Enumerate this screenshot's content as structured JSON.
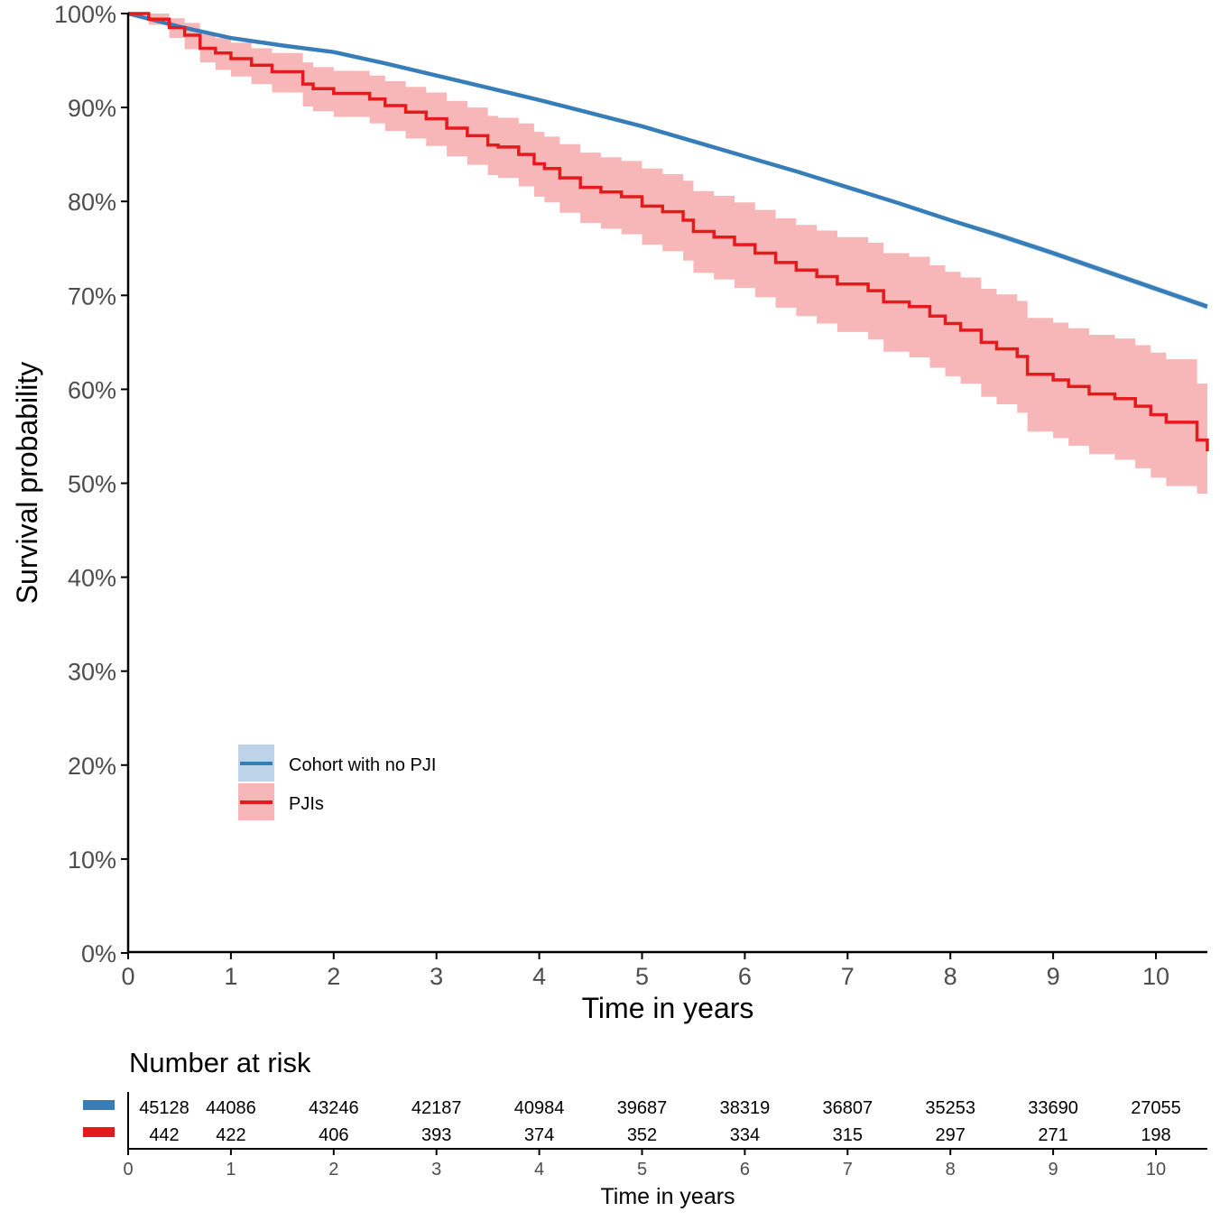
{
  "chart_data": {
    "type": "line",
    "subtype": "kaplan-meier",
    "title": "",
    "xlabel": "Time in years",
    "ylabel": "Survival probability",
    "xlim": [
      0,
      10.5
    ],
    "ylim": [
      0,
      100
    ],
    "x_ticks": [
      "0",
      "1",
      "2",
      "3",
      "4",
      "5",
      "6",
      "7",
      "8",
      "9",
      "10"
    ],
    "y_ticks": [
      "0%",
      "10%",
      "20%",
      "30%",
      "40%",
      "50%",
      "60%",
      "70%",
      "80%",
      "90%",
      "100%"
    ],
    "grid": false,
    "legend": {
      "placement": "bottom-left",
      "entries": [
        "Cohort with no PJI",
        "PJIs"
      ]
    },
    "series": [
      {
        "name": "Cohort with no PJI",
        "color": "#377eb8",
        "band_color": "#bdd3ea",
        "step": false,
        "x": [
          0,
          0.5,
          1,
          1.5,
          2,
          2.5,
          3,
          3.5,
          4,
          4.5,
          5,
          5.5,
          6,
          6.5,
          7,
          7.5,
          8,
          8.5,
          9,
          9.5,
          10,
          10.5
        ],
        "y": [
          100,
          98.6,
          97.4,
          96.6,
          95.9,
          94.7,
          93.4,
          92.1,
          90.8,
          89.4,
          88.0,
          86.4,
          84.8,
          83.2,
          81.5,
          79.8,
          78.0,
          76.3,
          74.5,
          72.6,
          70.7,
          68.8
        ],
        "ci_lower": [
          100,
          98.5,
          97.3,
          96.5,
          95.7,
          94.5,
          93.2,
          91.9,
          90.6,
          89.2,
          87.8,
          86.2,
          84.6,
          83.0,
          81.3,
          79.6,
          77.8,
          76.0,
          74.2,
          72.3,
          70.4,
          68.5
        ],
        "ci_upper": [
          100,
          98.7,
          97.5,
          96.7,
          96.1,
          94.9,
          93.6,
          92.3,
          91.0,
          89.6,
          88.2,
          86.6,
          85.0,
          83.4,
          81.7,
          80.0,
          78.2,
          76.6,
          74.8,
          72.9,
          71.0,
          69.1
        ]
      },
      {
        "name": "PJIs",
        "color": "#e41a1c",
        "band_color": "#f7b6b7",
        "step": true,
        "x": [
          0,
          0.2,
          0.4,
          0.55,
          0.7,
          0.85,
          1.0,
          1.2,
          1.4,
          1.7,
          1.8,
          2.0,
          2.35,
          2.5,
          2.7,
          2.9,
          3.1,
          3.3,
          3.5,
          3.6,
          3.8,
          3.95,
          4.05,
          4.2,
          4.4,
          4.6,
          4.8,
          5.0,
          5.2,
          5.4,
          5.5,
          5.7,
          5.9,
          6.1,
          6.3,
          6.5,
          6.7,
          6.9,
          7.2,
          7.35,
          7.6,
          7.8,
          7.95,
          8.1,
          8.3,
          8.45,
          8.65,
          8.75,
          9.0,
          9.15,
          9.35,
          9.6,
          9.8,
          9.95,
          10.1,
          10.4,
          10.5
        ],
        "y": [
          100,
          99.4,
          98.5,
          97.7,
          96.3,
          95.8,
          95.2,
          94.5,
          93.8,
          92.5,
          92.0,
          91.5,
          90.9,
          90.2,
          89.5,
          88.8,
          87.8,
          87.0,
          86.0,
          85.8,
          85.0,
          84.0,
          83.5,
          82.5,
          81.5,
          81.0,
          80.5,
          79.5,
          78.9,
          78.0,
          76.8,
          76.2,
          75.4,
          74.5,
          73.5,
          72.7,
          72.0,
          71.2,
          70.5,
          69.3,
          68.8,
          67.8,
          67.0,
          66.3,
          65.0,
          64.3,
          63.5,
          61.6,
          61.0,
          60.3,
          59.5,
          59.0,
          58.2,
          57.3,
          56.5,
          54.6,
          53.4
        ],
        "ci_lower": [
          100,
          98.8,
          97.4,
          96.2,
          94.8,
          94.0,
          93.3,
          92.5,
          91.6,
          90.1,
          89.6,
          89.0,
          88.3,
          87.5,
          86.7,
          85.9,
          84.8,
          83.9,
          82.8,
          82.5,
          81.6,
          80.5,
          79.9,
          78.8,
          77.7,
          77.1,
          76.5,
          75.4,
          74.7,
          73.7,
          72.4,
          71.7,
          70.8,
          69.8,
          68.7,
          67.8,
          67.0,
          66.1,
          65.3,
          64.0,
          63.4,
          62.3,
          61.4,
          60.6,
          59.2,
          58.4,
          57.5,
          55.5,
          54.8,
          54.0,
          53.1,
          52.5,
          51.6,
          50.6,
          49.7,
          48.9,
          48.5
        ],
        "ci_upper": [
          100,
          100,
          99.5,
          99.0,
          97.8,
          97.4,
          96.9,
          96.3,
          95.8,
          94.8,
          94.3,
          93.9,
          93.4,
          92.8,
          92.2,
          91.6,
          90.7,
          90.0,
          89.1,
          88.9,
          88.3,
          87.4,
          86.9,
          86.1,
          85.2,
          84.7,
          84.3,
          83.5,
          82.9,
          82.2,
          81.1,
          80.6,
          79.9,
          79.1,
          78.2,
          77.5,
          76.9,
          76.2,
          75.6,
          74.5,
          74.1,
          73.2,
          72.5,
          71.9,
          70.7,
          70.1,
          69.4,
          67.6,
          67.1,
          66.5,
          65.8,
          65.4,
          64.7,
          63.9,
          63.2,
          60.6,
          58.6
        ]
      }
    ],
    "risk_table": {
      "title": "Number at risk",
      "xlabel": "Time in years",
      "times": [
        "0",
        "1",
        "2",
        "3",
        "4",
        "5",
        "6",
        "7",
        "8",
        "9",
        "10"
      ],
      "rows": [
        {
          "name": "Cohort with no PJI",
          "color": "#377eb8",
          "values": [
            "45128",
            "44086",
            "43246",
            "42187",
            "40984",
            "39687",
            "38319",
            "36807",
            "35253",
            "33690",
            "27055"
          ]
        },
        {
          "name": "PJIs",
          "color": "#e41a1c",
          "values": [
            "442",
            "422",
            "406",
            "393",
            "374",
            "352",
            "334",
            "315",
            "297",
            "271",
            "198"
          ]
        }
      ]
    }
  }
}
